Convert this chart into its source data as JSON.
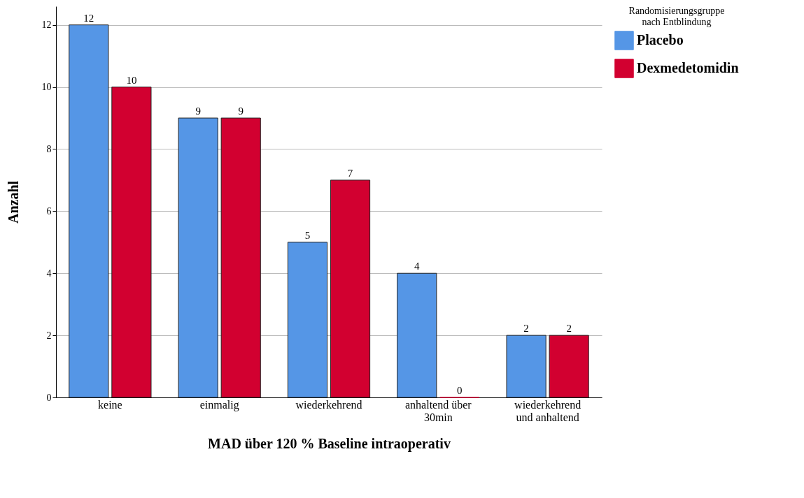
{
  "chart_data": {
    "type": "bar",
    "xlabel": "MAD über 120 % Baseline intraoperativ",
    "ylabel": "Anzahl",
    "legend_title": "Randomisierungsgruppe nach Entblindung",
    "categories": [
      "keine",
      "einmalig",
      "wiederkehrend",
      "anhaltend über 30min",
      "wiederkehrend und anhaltend"
    ],
    "series": [
      {
        "name": "Placebo",
        "color": "#5596e6",
        "values": [
          12,
          9,
          5,
          4,
          2
        ]
      },
      {
        "name": "Dexmedetomidin",
        "color": "#d20030",
        "values": [
          10,
          9,
          7,
          0,
          2
        ]
      }
    ],
    "ylim": [
      0,
      12.6
    ],
    "yticks": [
      0,
      2,
      4,
      6,
      8,
      10,
      12
    ],
    "grid": "y",
    "legend": "top right",
    "data_labels": true
  }
}
